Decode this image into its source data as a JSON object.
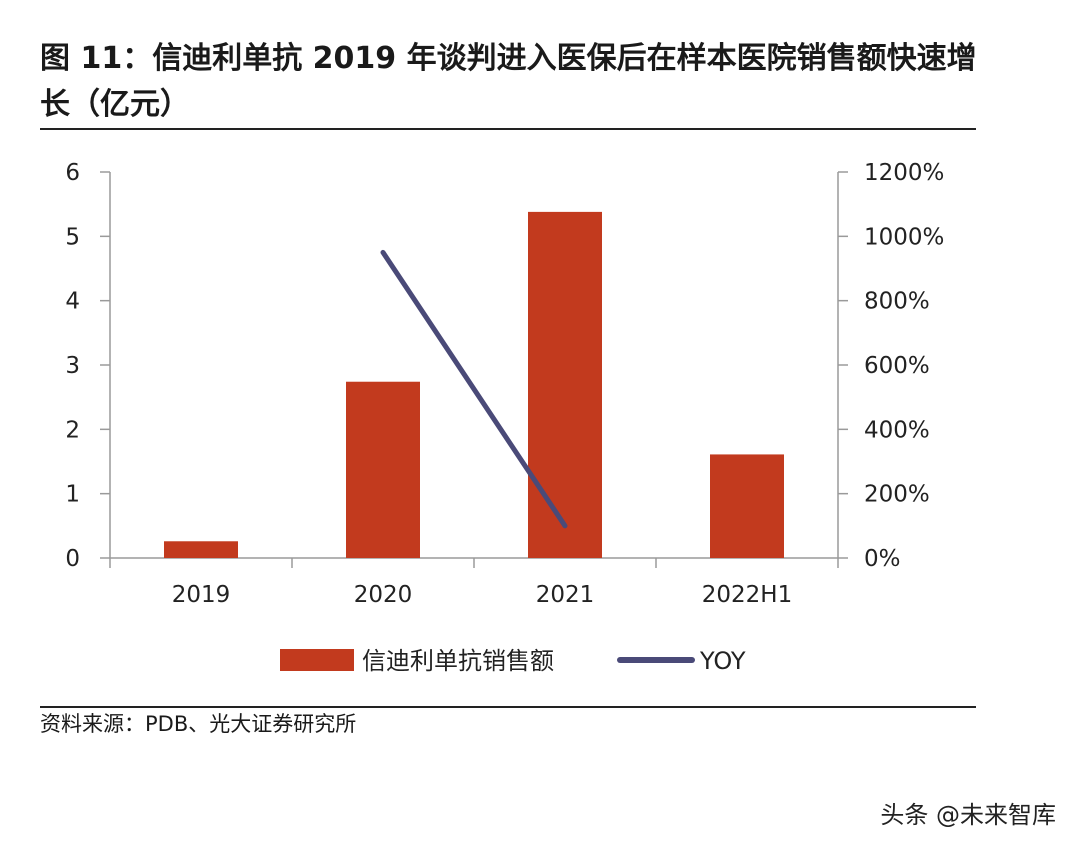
{
  "header": {
    "title": "图 11：信迪利单抗 2019 年谈判进入医保后在样本医院销售额快速增长（亿元）"
  },
  "chart_data": {
    "type": "bar",
    "categories": [
      "2019",
      "2020",
      "2021",
      "2022H1"
    ],
    "series": [
      {
        "name": "信迪利单抗销售额",
        "type": "bar",
        "axis": "left",
        "color": "#c23a1e",
        "values": [
          0.26,
          2.74,
          5.38,
          1.61
        ]
      },
      {
        "name": "YOY",
        "type": "line",
        "axis": "right",
        "color": "#4a4a78",
        "values": [
          null,
          950,
          100,
          null
        ]
      }
    ],
    "y_left": {
      "min": 0,
      "max": 6,
      "ticks": [
        "0",
        "1",
        "2",
        "3",
        "4",
        "5",
        "6"
      ]
    },
    "y_right": {
      "min": 0,
      "max": 1200,
      "ticks": [
        "0%",
        "200%",
        "400%",
        "600%",
        "800%",
        "1000%",
        "1200%"
      ]
    },
    "grid": false,
    "legend_position": "bottom"
  },
  "footer": {
    "source": "资料来源：PDB、光大证券研究所"
  },
  "watermark": {
    "text": "头条 @未来智库"
  }
}
